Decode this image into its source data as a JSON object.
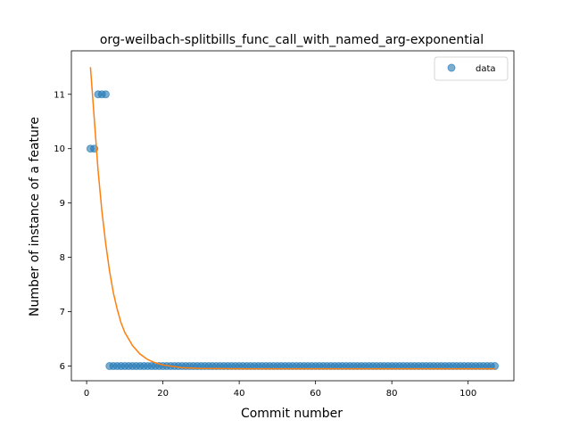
{
  "chart_data": {
    "type": "scatter",
    "title": "org-weilbach-splitbills_func_call_with_named_arg-exponential",
    "xlabel": "Commit number",
    "ylabel": "Number of instance of a feature",
    "xlim": [
      -4,
      112
    ],
    "ylim": [
      5.73,
      11.8
    ],
    "xticks": [
      0,
      20,
      40,
      60,
      80,
      100
    ],
    "yticks": [
      6,
      7,
      8,
      9,
      10,
      11
    ],
    "grid": false,
    "legend_position": "top-right",
    "legend": [
      "data"
    ],
    "colors": {
      "data": "#1f77b4",
      "fit": "#ff7f0e"
    },
    "series": [
      {
        "name": "data",
        "kind": "scatter",
        "points": [
          [
            1,
            10
          ],
          [
            2,
            10
          ],
          [
            3,
            11
          ],
          [
            4,
            11
          ],
          [
            5,
            11
          ],
          [
            6,
            6
          ],
          [
            7,
            6
          ],
          [
            8,
            6
          ],
          [
            9,
            6
          ],
          [
            10,
            6
          ],
          [
            11,
            6
          ],
          [
            12,
            6
          ],
          [
            13,
            6
          ],
          [
            14,
            6
          ],
          [
            15,
            6
          ],
          [
            16,
            6
          ],
          [
            17,
            6
          ],
          [
            18,
            6
          ],
          [
            19,
            6
          ],
          [
            20,
            6
          ],
          [
            21,
            6
          ],
          [
            22,
            6
          ],
          [
            23,
            6
          ],
          [
            24,
            6
          ],
          [
            25,
            6
          ],
          [
            26,
            6
          ],
          [
            27,
            6
          ],
          [
            28,
            6
          ],
          [
            29,
            6
          ],
          [
            30,
            6
          ],
          [
            31,
            6
          ],
          [
            32,
            6
          ],
          [
            33,
            6
          ],
          [
            34,
            6
          ],
          [
            35,
            6
          ],
          [
            36,
            6
          ],
          [
            37,
            6
          ],
          [
            38,
            6
          ],
          [
            39,
            6
          ],
          [
            40,
            6
          ],
          [
            41,
            6
          ],
          [
            42,
            6
          ],
          [
            43,
            6
          ],
          [
            44,
            6
          ],
          [
            45,
            6
          ],
          [
            46,
            6
          ],
          [
            47,
            6
          ],
          [
            48,
            6
          ],
          [
            49,
            6
          ],
          [
            50,
            6
          ],
          [
            51,
            6
          ],
          [
            52,
            6
          ],
          [
            53,
            6
          ],
          [
            54,
            6
          ],
          [
            55,
            6
          ],
          [
            56,
            6
          ],
          [
            57,
            6
          ],
          [
            58,
            6
          ],
          [
            59,
            6
          ],
          [
            60,
            6
          ],
          [
            61,
            6
          ],
          [
            62,
            6
          ],
          [
            63,
            6
          ],
          [
            64,
            6
          ],
          [
            65,
            6
          ],
          [
            66,
            6
          ],
          [
            67,
            6
          ],
          [
            68,
            6
          ],
          [
            69,
            6
          ],
          [
            70,
            6
          ],
          [
            71,
            6
          ],
          [
            72,
            6
          ],
          [
            73,
            6
          ],
          [
            74,
            6
          ],
          [
            75,
            6
          ],
          [
            76,
            6
          ],
          [
            77,
            6
          ],
          [
            78,
            6
          ],
          [
            79,
            6
          ],
          [
            80,
            6
          ],
          [
            81,
            6
          ],
          [
            82,
            6
          ],
          [
            83,
            6
          ],
          [
            84,
            6
          ],
          [
            85,
            6
          ],
          [
            86,
            6
          ],
          [
            87,
            6
          ],
          [
            88,
            6
          ],
          [
            89,
            6
          ],
          [
            90,
            6
          ],
          [
            91,
            6
          ],
          [
            92,
            6
          ],
          [
            93,
            6
          ],
          [
            94,
            6
          ],
          [
            95,
            6
          ],
          [
            96,
            6
          ],
          [
            97,
            6
          ],
          [
            98,
            6
          ],
          [
            99,
            6
          ],
          [
            100,
            6
          ],
          [
            101,
            6
          ],
          [
            102,
            6
          ],
          [
            103,
            6
          ],
          [
            104,
            6
          ],
          [
            105,
            6
          ],
          [
            106,
            6
          ],
          [
            107,
            6
          ]
        ]
      },
      {
        "kind": "line",
        "points": [
          [
            1,
            11.5
          ],
          [
            2,
            10.55
          ],
          [
            3,
            9.6
          ],
          [
            4,
            8.85
          ],
          [
            5,
            8.25
          ],
          [
            6,
            7.75
          ],
          [
            7,
            7.35
          ],
          [
            8,
            7.05
          ],
          [
            9,
            6.8
          ],
          [
            10,
            6.62
          ],
          [
            12,
            6.38
          ],
          [
            14,
            6.22
          ],
          [
            16,
            6.12
          ],
          [
            18,
            6.06
          ],
          [
            20,
            6.02
          ],
          [
            25,
            5.97
          ],
          [
            30,
            5.955
          ],
          [
            40,
            5.95
          ],
          [
            60,
            5.95
          ],
          [
            80,
            5.95
          ],
          [
            107,
            5.95
          ]
        ]
      }
    ]
  }
}
